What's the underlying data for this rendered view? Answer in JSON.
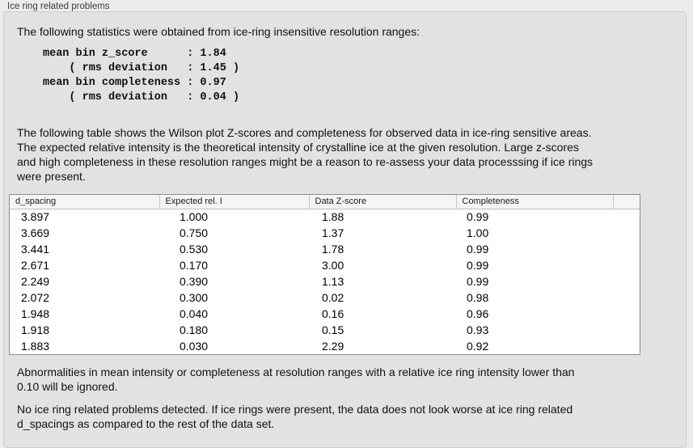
{
  "panel": {
    "title": "Ice ring related problems"
  },
  "intro": "The following statistics were obtained from ice-ring insensitive resolution ranges:",
  "stats_block": "mean bin z_score      : 1.84\n    ( rms deviation   : 1.45 )\nmean bin completeness : 0.97\n    ( rms deviation   : 0.04 )",
  "stats": {
    "mean_bin_z_score": "1.84",
    "z_score_rms_deviation": "1.45",
    "mean_bin_completeness": "0.97",
    "completeness_rms_deviation": "0.04"
  },
  "table_description": "The following table shows the Wilson plot Z-scores and completeness for observed data in ice-ring sensitive areas.\nThe expected relative intensity is the theoretical intensity of crystalline ice at the given resolution. Large z-scores\nand high completeness in these resolution ranges might be a reason to re-assess your data processsing if ice rings\nwere present.",
  "table": {
    "columns": [
      "d_spacing",
      "Expected rel. I",
      "Data Z-score",
      "Completeness"
    ],
    "rows": [
      [
        "3.897",
        "1.000",
        "1.88",
        "0.99"
      ],
      [
        "3.669",
        "0.750",
        "1.37",
        "1.00"
      ],
      [
        "3.441",
        "0.530",
        "1.78",
        "0.99"
      ],
      [
        "2.671",
        "0.170",
        "3.00",
        "0.99"
      ],
      [
        "2.249",
        "0.390",
        "1.13",
        "0.99"
      ],
      [
        "2.072",
        "0.300",
        "0.02",
        "0.98"
      ],
      [
        "1.948",
        "0.040",
        "0.16",
        "0.96"
      ],
      [
        "1.918",
        "0.180",
        "0.15",
        "0.93"
      ],
      [
        "1.883",
        "0.030",
        "2.29",
        "0.92"
      ]
    ]
  },
  "note_ignore": "Abnormalities in mean intensity or completeness at resolution ranges with a relative ice ring intensity lower than\n0.10 will be ignored.",
  "conclusion": "No ice ring related problems detected. If ice rings were present, the data does not look worse at ice ring related\nd_spacings as compared to the rest of the data set."
}
